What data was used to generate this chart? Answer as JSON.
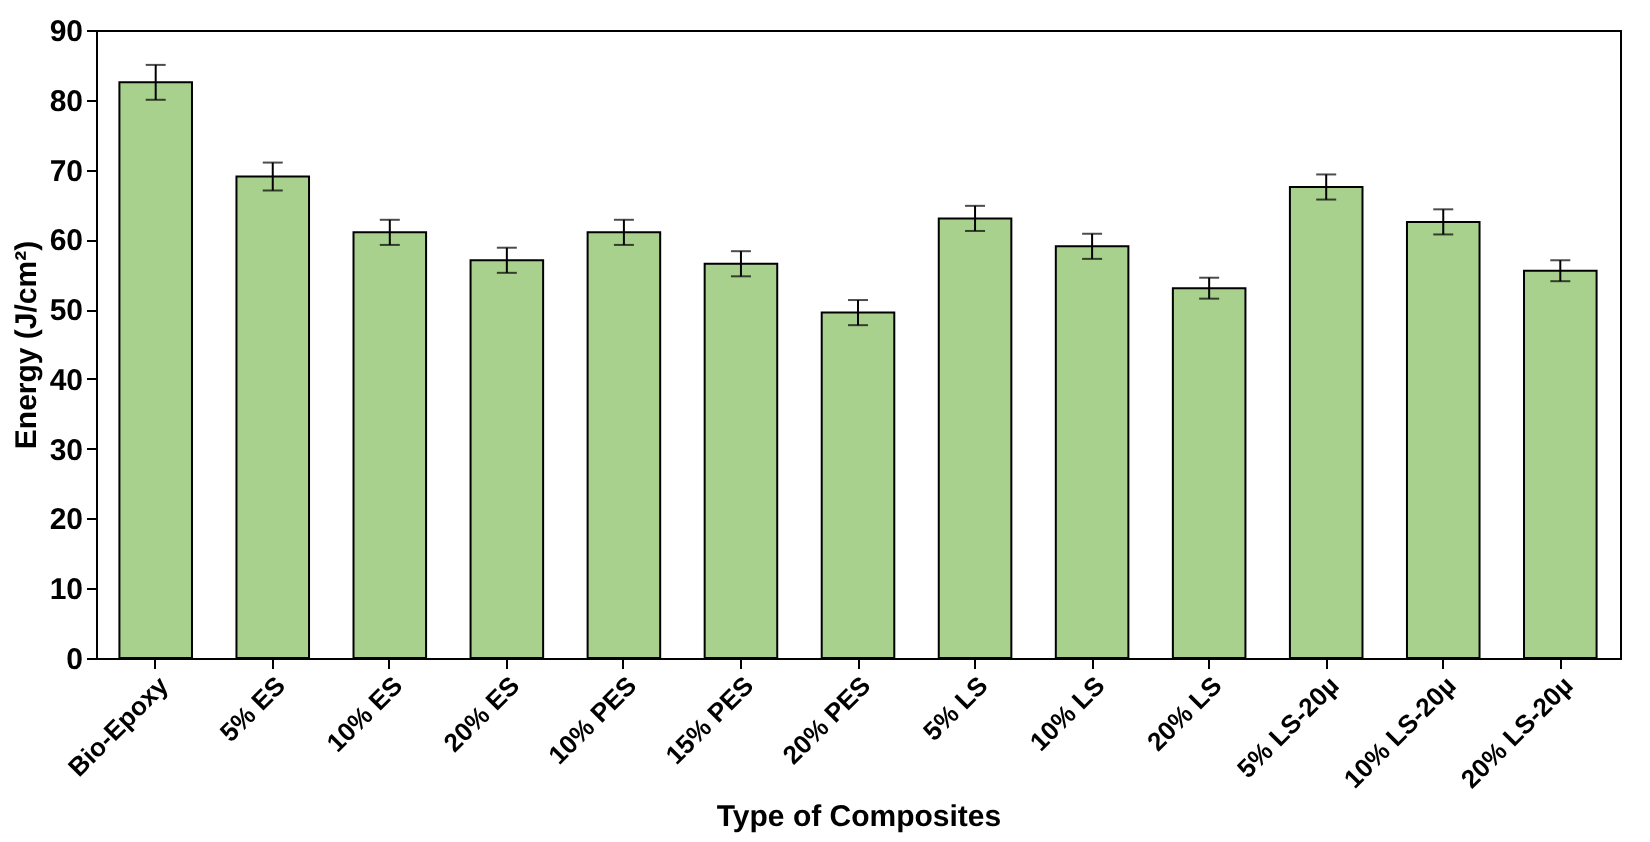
{
  "chart_data": {
    "type": "bar",
    "xlabel": "Type of Composites",
    "ylabel": "Energy (J/cm²)",
    "categories": [
      "Bio-Epoxy",
      "5% ES",
      "10% ES",
      "20% ES",
      "10% PES",
      "15% PES",
      "20% PES",
      "5% LS",
      "10% LS",
      "20% LS",
      "5% LS-20µ",
      "10% LS-20µ",
      "20% LS-20µ"
    ],
    "values": [
      82.5,
      69,
      61,
      57,
      61,
      56.5,
      49.5,
      63,
      59,
      53,
      67.5,
      62.5,
      55.5
    ],
    "errors": [
      2.5,
      2,
      1.8,
      1.8,
      1.8,
      1.8,
      1.8,
      1.8,
      1.8,
      1.5,
      1.8,
      1.8,
      1.5
    ],
    "color": "#a9d18e",
    "ylim": [
      0,
      90
    ],
    "yticks": [
      0,
      10,
      20,
      30,
      40,
      50,
      60,
      70,
      80,
      90
    ]
  }
}
